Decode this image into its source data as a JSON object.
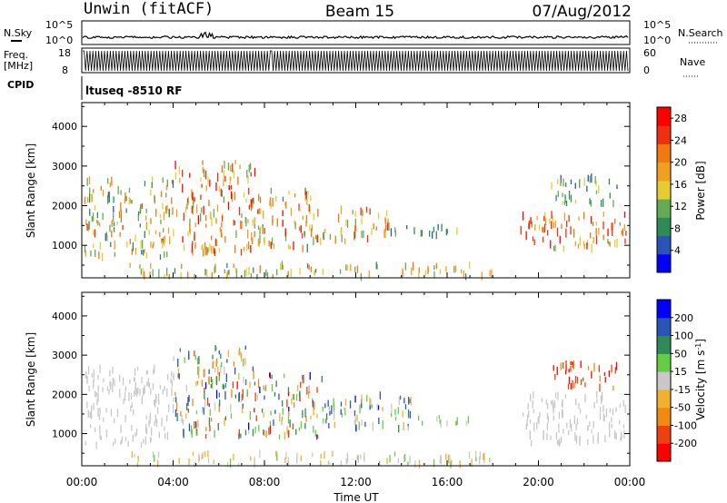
{
  "header": {
    "station": "Unwin (fitACF)",
    "beam": "Beam 15",
    "date": "07/Aug/2012"
  },
  "top_panels": {
    "nsky_label": "N.Sky",
    "nsky_ticks": [
      "10^5",
      "10^0"
    ],
    "nsearch_label": "N.Search",
    "freq_label": "Freq.",
    "freq_unit": "[MHz]",
    "freq_ticks": [
      "18",
      "8"
    ],
    "nave_ticks": [
      "60",
      "0"
    ],
    "nave_label": "Nave",
    "cpid_label": "CPID",
    "cpid_text": "ltuseq -8510 RF"
  },
  "chart_data": [
    {
      "type": "heatmap",
      "title": "",
      "xlabel": "Time UT",
      "ylabel": "Slant Range [km]",
      "x_ticks": [
        "00:00",
        "04:00",
        "08:00",
        "12:00",
        "16:00",
        "20:00",
        "00:00"
      ],
      "y_ticks": [
        "1000",
        "2000",
        "3000",
        "4000"
      ],
      "ylim": [
        180,
        4600
      ],
      "colorbar_label": "Power [dB]",
      "colorbar_ticks": [
        "4",
        "8",
        "12",
        "16",
        "20",
        "24",
        "28"
      ],
      "colorbar_range": [
        0,
        30
      ],
      "colors": [
        "#0000ff",
        "#2a54b8",
        "#2e8b57",
        "#66aa55",
        "#e5cc33",
        "#f0a020",
        "#ee7a10",
        "#ee3010",
        "#ff0000"
      ],
      "regions": [
        {
          "t0": 0.1,
          "t1": 4.0,
          "r0": 700,
          "r1": 2700,
          "v0": 6,
          "v1": 24
        },
        {
          "t0": 4.0,
          "t1": 7.6,
          "r0": 800,
          "r1": 3100,
          "v0": 10,
          "v1": 30
        },
        {
          "t0": 7.6,
          "t1": 10.2,
          "r0": 900,
          "r1": 2400,
          "v0": 8,
          "v1": 28
        },
        {
          "t0": 10.2,
          "t1": 13.5,
          "r0": 1100,
          "r1": 1900,
          "v0": 10,
          "v1": 26
        },
        {
          "t0": 13.5,
          "t1": 17.0,
          "r0": 1250,
          "r1": 1500,
          "v0": 4,
          "v1": 14
        },
        {
          "t0": 19.2,
          "t1": 23.9,
          "r0": 900,
          "r1": 1800,
          "v0": 12,
          "v1": 30
        },
        {
          "t0": 20.5,
          "t1": 23.5,
          "r0": 2000,
          "r1": 2700,
          "v0": 4,
          "v1": 16
        },
        {
          "t0": 2.0,
          "t1": 18.0,
          "r0": 200,
          "r1": 500,
          "v0": 8,
          "v1": 22
        }
      ]
    },
    {
      "type": "heatmap",
      "title": "",
      "xlabel": "Time UT",
      "ylabel": "Slant Range [km]",
      "x_ticks": [
        "00:00",
        "04:00",
        "08:00",
        "12:00",
        "16:00",
        "20:00",
        "00:00"
      ],
      "y_ticks": [
        "1000",
        "2000",
        "3000",
        "4000"
      ],
      "ylim": [
        180,
        4600
      ],
      "colorbar_label": "Velocity [m s^-1]",
      "colorbar_ticks": [
        "200",
        "100",
        "50",
        "15",
        "-15",
        "-50",
        "-100",
        "-200"
      ],
      "colorbar_range": [
        -250,
        250
      ],
      "colors": [
        "#ff0000",
        "#ee4010",
        "#f08a10",
        "#f0b030",
        "#c8c8c8",
        "#66cc44",
        "#2e8b57",
        "#2a54b8",
        "#0000ff"
      ],
      "regions": [
        {
          "t0": 0.1,
          "t1": 4.0,
          "r0": 700,
          "r1": 2700,
          "v0": -20,
          "v1": 20
        },
        {
          "t0": 4.0,
          "t1": 7.5,
          "r0": 900,
          "r1": 3200,
          "v0": -200,
          "v1": 200
        },
        {
          "t0": 7.5,
          "t1": 10.5,
          "r0": 900,
          "r1": 2500,
          "v0": -220,
          "v1": 220
        },
        {
          "t0": 10.5,
          "t1": 14.5,
          "r0": 1100,
          "r1": 2000,
          "v0": -60,
          "v1": 200
        },
        {
          "t0": 14.5,
          "t1": 17.0,
          "r0": 1200,
          "r1": 1450,
          "v0": 20,
          "v1": 60
        },
        {
          "t0": 19.2,
          "t1": 23.9,
          "r0": 700,
          "r1": 2000,
          "v0": -20,
          "v1": 20
        },
        {
          "t0": 20.5,
          "t1": 23.5,
          "r0": 2100,
          "r1": 2800,
          "v0": -250,
          "v1": -120
        },
        {
          "t0": 2.0,
          "t1": 18.0,
          "r0": 200,
          "r1": 500,
          "v0": -80,
          "v1": 60
        }
      ]
    }
  ]
}
